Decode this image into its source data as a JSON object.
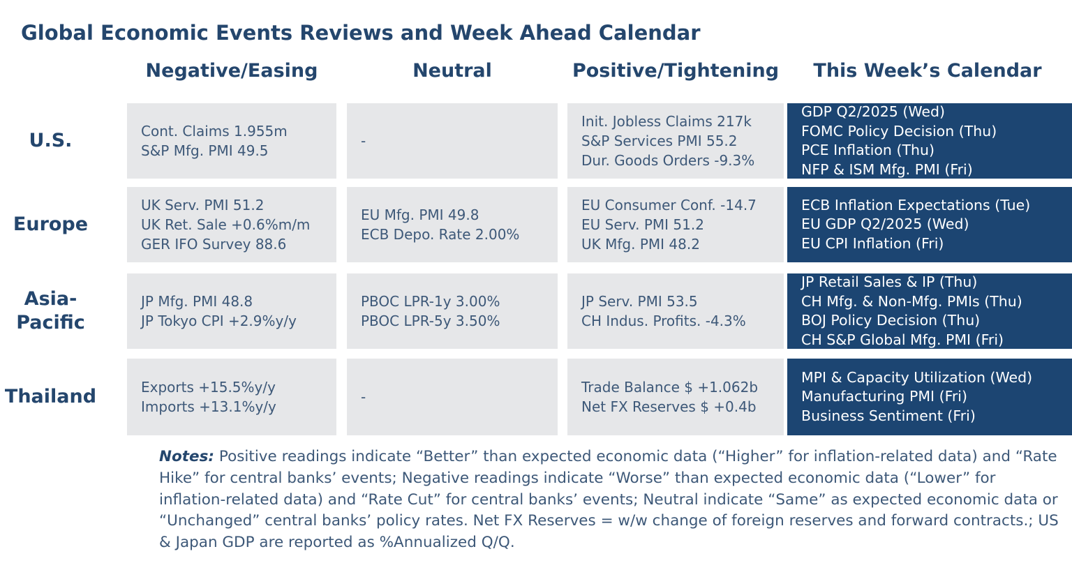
{
  "title": "Global Economic Events Reviews and Week Ahead Calendar",
  "columns": [
    "Negative/Easing",
    "Neutral",
    "Positive/Tightening",
    "This Week’s Calendar"
  ],
  "rows": [
    {
      "label": "U.S.",
      "negative": [
        "Cont. Claims 1.955m",
        "S&P Mfg. PMI 49.5"
      ],
      "neutral": [
        "-"
      ],
      "positive": [
        "Init. Jobless Claims 217k",
        "S&P Services PMI 55.2",
        "Dur. Goods Orders -9.3%"
      ],
      "calendar": [
        "GDP Q2/2025 (Wed)",
        "FOMC Policy Decision (Thu)",
        "PCE Inflation (Thu)",
        "NFP & ISM Mfg. PMI (Fri)"
      ]
    },
    {
      "label": "Europe",
      "negative": [
        "UK Serv. PMI 51.2",
        "UK Ret. Sale +0.6%m/m",
        "GER IFO Survey 88.6"
      ],
      "neutral": [
        "EU Mfg. PMI 49.8",
        "ECB Depo. Rate 2.00%"
      ],
      "positive": [
        "EU Consumer Conf. -14.7",
        "EU Serv. PMI 51.2",
        "UK Mfg. PMI 48.2"
      ],
      "calendar": [
        "ECB Inflation Expectations (Tue)",
        "EU GDP Q2/2025 (Wed)",
        "EU CPI Inflation (Fri)"
      ]
    },
    {
      "label_line1": "Asia-",
      "label_line2": "Pacific",
      "negative": [
        "JP Mfg. PMI 48.8",
        "JP Tokyo CPI +2.9%y/y"
      ],
      "neutral": [
        "PBOC LPR-1y 3.00%",
        "PBOC LPR-5y 3.50%"
      ],
      "positive": [
        "JP Serv. PMI 53.5",
        "CH Indus. Profits. -4.3%"
      ],
      "calendar": [
        "JP Retail Sales & IP (Thu)",
        "CH Mfg. & Non-Mfg. PMIs (Thu)",
        "BOJ Policy Decision (Thu)",
        "CH S&P Global Mfg. PMI (Fri)"
      ]
    },
    {
      "label": "Thailand",
      "negative": [
        "Exports +15.5%y/y",
        "Imports +13.1%y/y"
      ],
      "neutral": [
        "-"
      ],
      "positive": [
        "Trade Balance $ +1.062b",
        "Net FX Reserves $ +0.4b"
      ],
      "calendar": [
        "MPI & Capacity Utilization (Wed)",
        "Manufacturing PMI (Fri)",
        "Business Sentiment (Fri)"
      ]
    }
  ],
  "notes": {
    "label": "Notes:",
    "text": " Positive readings indicate “Better” than expected economic data (“Higher” for inflation-related data) and “Rate Hike” for central banks’ events; Negative readings indicate “Worse” than expected economic data (“Lower” for inflation-related data) and “Rate Cut” for central banks’ events; Neutral indicate “Same” as expected economic data or “Unchanged” central banks’ policy rates. Net FX Reserves = w/w change of foreign reserves and forward contracts.; US & Japan GDP are reported as %Annualized Q/Q."
  },
  "colors": {
    "heading": "#24466d",
    "cell_bg": "#e6e7e9",
    "calendar_bg": "#1c4572",
    "body_text": "#3d5878"
  }
}
